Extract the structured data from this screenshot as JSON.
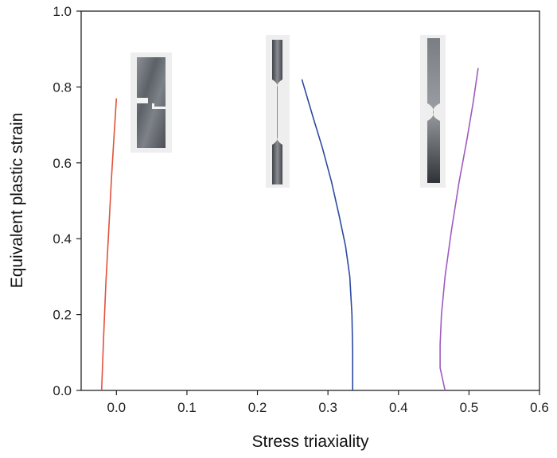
{
  "chart_data": {
    "type": "line",
    "title": "",
    "xlabel": "Stress triaxiality",
    "ylabel": "Equivalent plastic strain",
    "xlim": [
      -0.05,
      0.6
    ],
    "ylim": [
      0.0,
      1.0
    ],
    "xticks": [
      0.0,
      0.1,
      0.2,
      0.3,
      0.4,
      0.5,
      0.6
    ],
    "yticks": [
      0.0,
      0.2,
      0.4,
      0.6,
      0.8,
      1.0
    ],
    "xtick_labels": [
      "0.0",
      "0.1",
      "0.2",
      "0.3",
      "0.4",
      "0.5",
      "0.6"
    ],
    "ytick_labels": [
      "0.0",
      "0.2",
      "0.4",
      "0.6",
      "0.8",
      "1.0"
    ],
    "grid": false,
    "legend": "none",
    "series": [
      {
        "color": "#e0523a",
        "x": [
          -0.021,
          -0.02,
          -0.018,
          -0.015,
          -0.011,
          -0.007,
          -0.003,
          0.0
        ],
        "y": [
          0.0,
          0.05,
          0.15,
          0.28,
          0.42,
          0.56,
          0.68,
          0.77
        ]
      },
      {
        "color": "#2c4aa0",
        "x": [
          0.335,
          0.335,
          0.334,
          0.331,
          0.325,
          0.316,
          0.305,
          0.292,
          0.279,
          0.263
        ],
        "y": [
          0.0,
          0.1,
          0.2,
          0.3,
          0.38,
          0.46,
          0.55,
          0.64,
          0.72,
          0.82
        ]
      },
      {
        "color": "#a05ac0",
        "x": [
          0.466,
          0.459,
          0.459,
          0.461,
          0.466,
          0.475,
          0.486,
          0.497,
          0.506,
          0.513
        ],
        "y": [
          0.0,
          0.06,
          0.12,
          0.2,
          0.3,
          0.42,
          0.55,
          0.66,
          0.76,
          0.85
        ]
      }
    ]
  },
  "specimen_photos": [
    {
      "name": "notched-shear-specimen-photo",
      "shape": "shear"
    },
    {
      "name": "notched-tensile-specimen-photo",
      "shape": "long-notch"
    },
    {
      "name": "notched-round-specimen-photo",
      "shape": "short-notch"
    }
  ]
}
